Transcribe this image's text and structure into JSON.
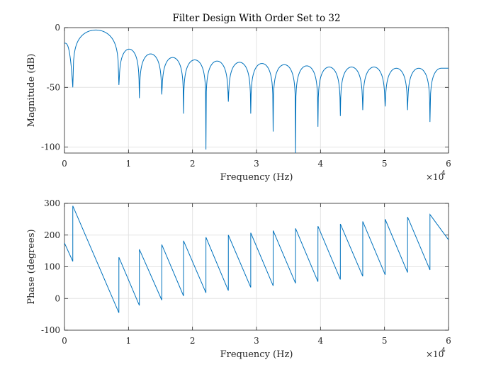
{
  "chart_data": [
    {
      "type": "line",
      "title": "Filter Design With Order Set to 32",
      "xlabel": "Frequency (Hz)",
      "ylabel": "Magnitude (dB)",
      "x_exponent_label": "×10",
      "x_exponent_power": "4",
      "xlim": [
        0,
        60000
      ],
      "ylim": [
        -105,
        0
      ],
      "x_ticks": [
        0,
        10000,
        20000,
        30000,
        40000,
        50000,
        60000
      ],
      "x_tick_labels": [
        "0",
        "1",
        "2",
        "3",
        "4",
        "5",
        "6"
      ],
      "y_ticks": [
        0,
        -50,
        -100
      ],
      "y_tick_labels": [
        "0",
        "-50",
        "-100"
      ],
      "grid": true,
      "line_color": "#0072BD",
      "series": [
        {
          "x": [
            0,
            1300,
            8500,
            11700,
            15200,
            18600,
            22100,
            25600,
            29100,
            32600,
            36100,
            39600,
            43100,
            46600,
            50100,
            53600,
            57100,
            60000
          ],
          "nulls": [
            -50,
            -48,
            -59,
            -56,
            -72,
            -102,
            -62,
            -72,
            -87,
            -105,
            -83,
            -74,
            -69,
            -66,
            -69,
            -79
          ],
          "lobe_peaks": [
            -2,
            -18,
            -22,
            -25,
            -27,
            -28,
            -29,
            -30,
            -31,
            -32,
            -33,
            -33,
            -33,
            -34,
            -34,
            -34
          ],
          "start_value": -13,
          "end_value": -34
        }
      ]
    },
    {
      "type": "line",
      "xlabel": "Frequency (Hz)",
      "ylabel": "Phase (degrees)",
      "x_exponent_label": "×10",
      "x_exponent_power": "4",
      "xlim": [
        0,
        60000
      ],
      "ylim": [
        -100,
        300
      ],
      "x_ticks": [
        0,
        10000,
        20000,
        30000,
        40000,
        50000,
        60000
      ],
      "x_tick_labels": [
        "0",
        "1",
        "2",
        "3",
        "4",
        "5",
        "6"
      ],
      "y_ticks": [
        300,
        200,
        100,
        0,
        -100
      ],
      "y_tick_labels": [
        "300",
        "200",
        "100",
        "0",
        "-100"
      ],
      "grid": true,
      "line_color": "#0072BD",
      "series": [
        {
          "x": [
            0,
            1300,
            1300,
            8500,
            8500,
            11700,
            11700,
            15200,
            15200,
            18600,
            18600,
            22100,
            22100,
            25600,
            25600,
            29100,
            29100,
            32600,
            32600,
            36100,
            36100,
            39600,
            39600,
            43100,
            43100,
            46600,
            46600,
            50100,
            50100,
            53600,
            53600,
            57100,
            57100,
            60000
          ],
          "y": [
            175,
            117,
            292,
            -45,
            130,
            -22,
            155,
            -5,
            170,
            8,
            182,
            18,
            193,
            25,
            200,
            35,
            207,
            40,
            214,
            48,
            221,
            53,
            228,
            60,
            235,
            70,
            243,
            75,
            250,
            82,
            257,
            90,
            265,
            185
          ]
        }
      ]
    }
  ]
}
